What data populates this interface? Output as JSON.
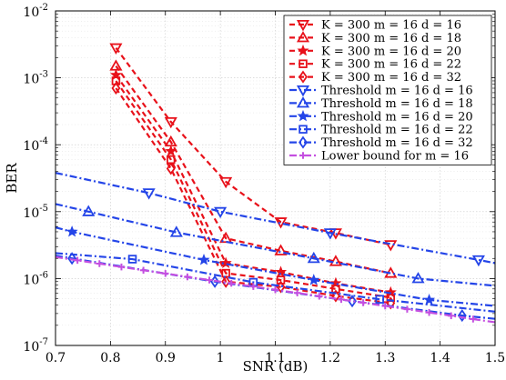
{
  "chart_data": {
    "type": "line",
    "xlabel": "SNR (dB)",
    "ylabel": "BER",
    "xlim": [
      0.7,
      1.5
    ],
    "ylim": [
      1e-07,
      0.01
    ],
    "yscale": "log",
    "grid": true,
    "legend_position": "top-right",
    "x_ticks": [
      "0.7",
      "0.8",
      "0.9",
      "1",
      "1.1",
      "1.2",
      "1.3",
      "1.4",
      "1.5"
    ],
    "y_ticks": [
      "10",
      "10",
      "10",
      "10",
      "10",
      "10"
    ],
    "y_tick_exponents": [
      "-7",
      "-6",
      "-5",
      "-4",
      "-3",
      "-2"
    ],
    "series": [
      {
        "name": "K = 300 m = 16 d = 16",
        "color": "#e8111a",
        "marker": "triangle-down",
        "dash": "dashed",
        "x": [
          0.81,
          0.91,
          1.01,
          1.11,
          1.21,
          1.31
        ],
        "y": [
          0.0028,
          0.00022,
          2.8e-05,
          7e-06,
          4.8e-06,
          3.2e-06
        ]
      },
      {
        "name": "K = 300 m = 16 d = 18",
        "color": "#e8111a",
        "marker": "triangle-up",
        "dash": "dashed",
        "x": [
          0.81,
          0.91,
          1.01,
          1.11,
          1.21,
          1.31
        ],
        "y": [
          0.0015,
          0.00011,
          4e-06,
          2.6e-06,
          1.8e-06,
          1.2e-06
        ]
      },
      {
        "name": "K = 300 m = 16 d = 20",
        "color": "#e8111a",
        "marker": "star",
        "dash": "dashed",
        "x": [
          0.81,
          0.91,
          1.01,
          1.11,
          1.21,
          1.31
        ],
        "y": [
          0.0011,
          8e-05,
          1.7e-06,
          1.25e-06,
          8.5e-07,
          6.2e-07
        ]
      },
      {
        "name": "K = 300 m = 16 d = 22",
        "color": "#e8111a",
        "marker": "square",
        "dash": "dashed",
        "x": [
          0.81,
          0.91,
          1.01,
          1.11,
          1.21,
          1.31
        ],
        "y": [
          0.0009,
          6e-05,
          1.2e-06,
          9.5e-07,
          7e-07,
          5.2e-07
        ]
      },
      {
        "name": "K = 300 m = 16 d = 32",
        "color": "#e8111a",
        "marker": "diamond",
        "dash": "dashed",
        "x": [
          0.81,
          0.91,
          1.01,
          1.11,
          1.21,
          1.31
        ],
        "y": [
          0.0007,
          4.4e-05,
          9e-07,
          7.5e-07,
          5.5e-07,
          4.3e-07
        ]
      },
      {
        "name": "Threshold m = 16 d = 16",
        "color": "#2445e8",
        "marker": "triangle-down",
        "dash": "dashdot",
        "x": [
          0.7,
          0.87,
          1.0,
          1.2,
          1.47,
          1.5
        ],
        "y": [
          3.8e-05,
          1.9e-05,
          1e-05,
          4.8e-06,
          1.9e-06,
          1.7e-06
        ]
      },
      {
        "name": "Threshold m = 16 d = 18",
        "color": "#2445e8",
        "marker": "triangle-up",
        "dash": "dashdot",
        "x": [
          0.7,
          0.76,
          0.92,
          1.17,
          1.36,
          1.5
        ],
        "y": [
          1.3e-05,
          1e-05,
          4.9e-06,
          2e-06,
          1e-06,
          7.8e-07
        ]
      },
      {
        "name": "Threshold m = 16 d = 20",
        "color": "#2445e8",
        "marker": "star",
        "dash": "dashdot",
        "x": [
          0.7,
          0.73,
          0.97,
          1.17,
          1.38,
          1.5
        ],
        "y": [
          5.8e-06,
          5e-06,
          1.9e-06,
          9.5e-07,
          4.8e-07,
          3.9e-07
        ]
      },
      {
        "name": "Threshold m = 16 d = 22",
        "color": "#2445e8",
        "marker": "square",
        "dash": "dashdot",
        "x": [
          0.7,
          0.84,
          1.06,
          1.29,
          1.5
        ],
        "y": [
          2.4e-06,
          1.95e-06,
          8.8e-07,
          4.9e-07,
          3.2e-07
        ]
      },
      {
        "name": "Threshold m = 16 d = 32",
        "color": "#2445e8",
        "marker": "diamond",
        "dash": "dashdot",
        "x": [
          0.7,
          0.73,
          0.99,
          1.24,
          1.44,
          1.5
        ],
        "y": [
          2.2e-06,
          2e-06,
          9e-07,
          4.6e-07,
          2.8e-07,
          2.5e-07
        ]
      },
      {
        "name": "Lower bound for m = 16",
        "color": "#c44fe0",
        "marker": "plus",
        "dash": "dashdot",
        "x": [
          0.7,
          0.74,
          0.78,
          0.82,
          0.86,
          0.9,
          0.94,
          0.98,
          1.02,
          1.06,
          1.1,
          1.14,
          1.18,
          1.22,
          1.26,
          1.3,
          1.34,
          1.38,
          1.42,
          1.46,
          1.5
        ],
        "y": [
          2.1e-06,
          1.87e-06,
          1.67e-06,
          1.49e-06,
          1.33e-06,
          1.19e-06,
          1.06e-06,
          9.5e-07,
          8.5e-07,
          7.6e-07,
          6.8e-07,
          6.1e-07,
          5.45e-07,
          4.87e-07,
          4.35e-07,
          3.89e-07,
          3.48e-07,
          3.11e-07,
          2.78e-07,
          2.48e-07,
          2.22e-07
        ]
      }
    ]
  }
}
